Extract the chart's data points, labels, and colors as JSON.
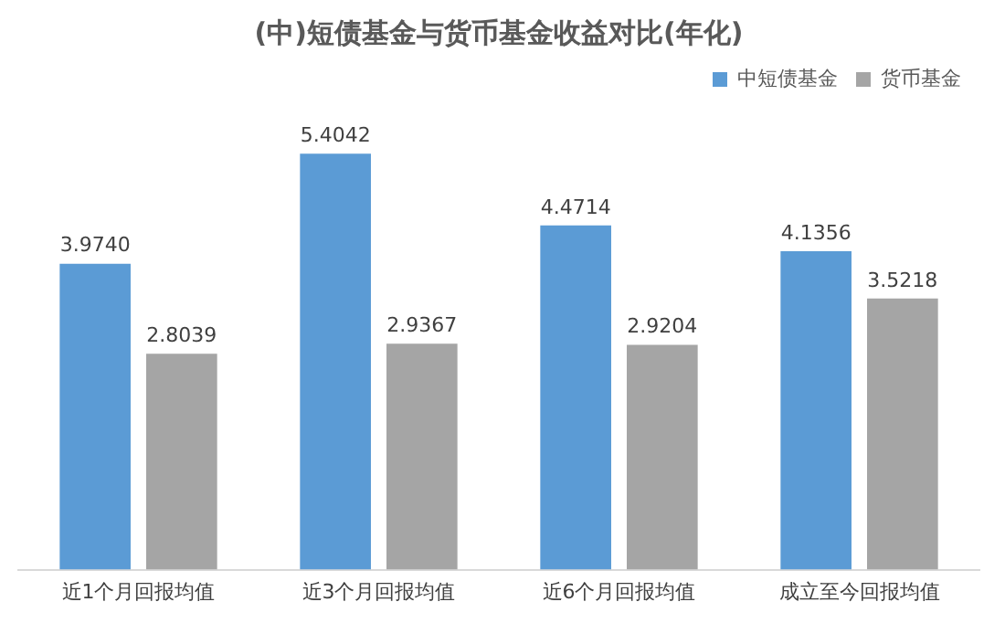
{
  "chart_data": {
    "type": "bar",
    "title": "(中)短债基金与货币基金收益对比(年化)",
    "categories": [
      "近1个月回报均值",
      "近3个月回报均值",
      "近6个月回报均值",
      "成立至今回报均值"
    ],
    "series": [
      {
        "name": "中短债基金",
        "color": "#5b9bd5",
        "values": [
          3.974,
          5.4042,
          4.4714,
          4.1356
        ],
        "value_labels": [
          "3.9740",
          "5.4042",
          "4.4714",
          "4.1356"
        ]
      },
      {
        "name": "货币基金",
        "color": "#a5a5a5",
        "values": [
          2.8039,
          2.9367,
          2.9204,
          3.5218
        ],
        "value_labels": [
          "2.8039",
          "2.9367",
          "2.9204",
          "3.5218"
        ]
      }
    ],
    "grid": false,
    "legend": "top right",
    "tick_labels": "x"
  }
}
